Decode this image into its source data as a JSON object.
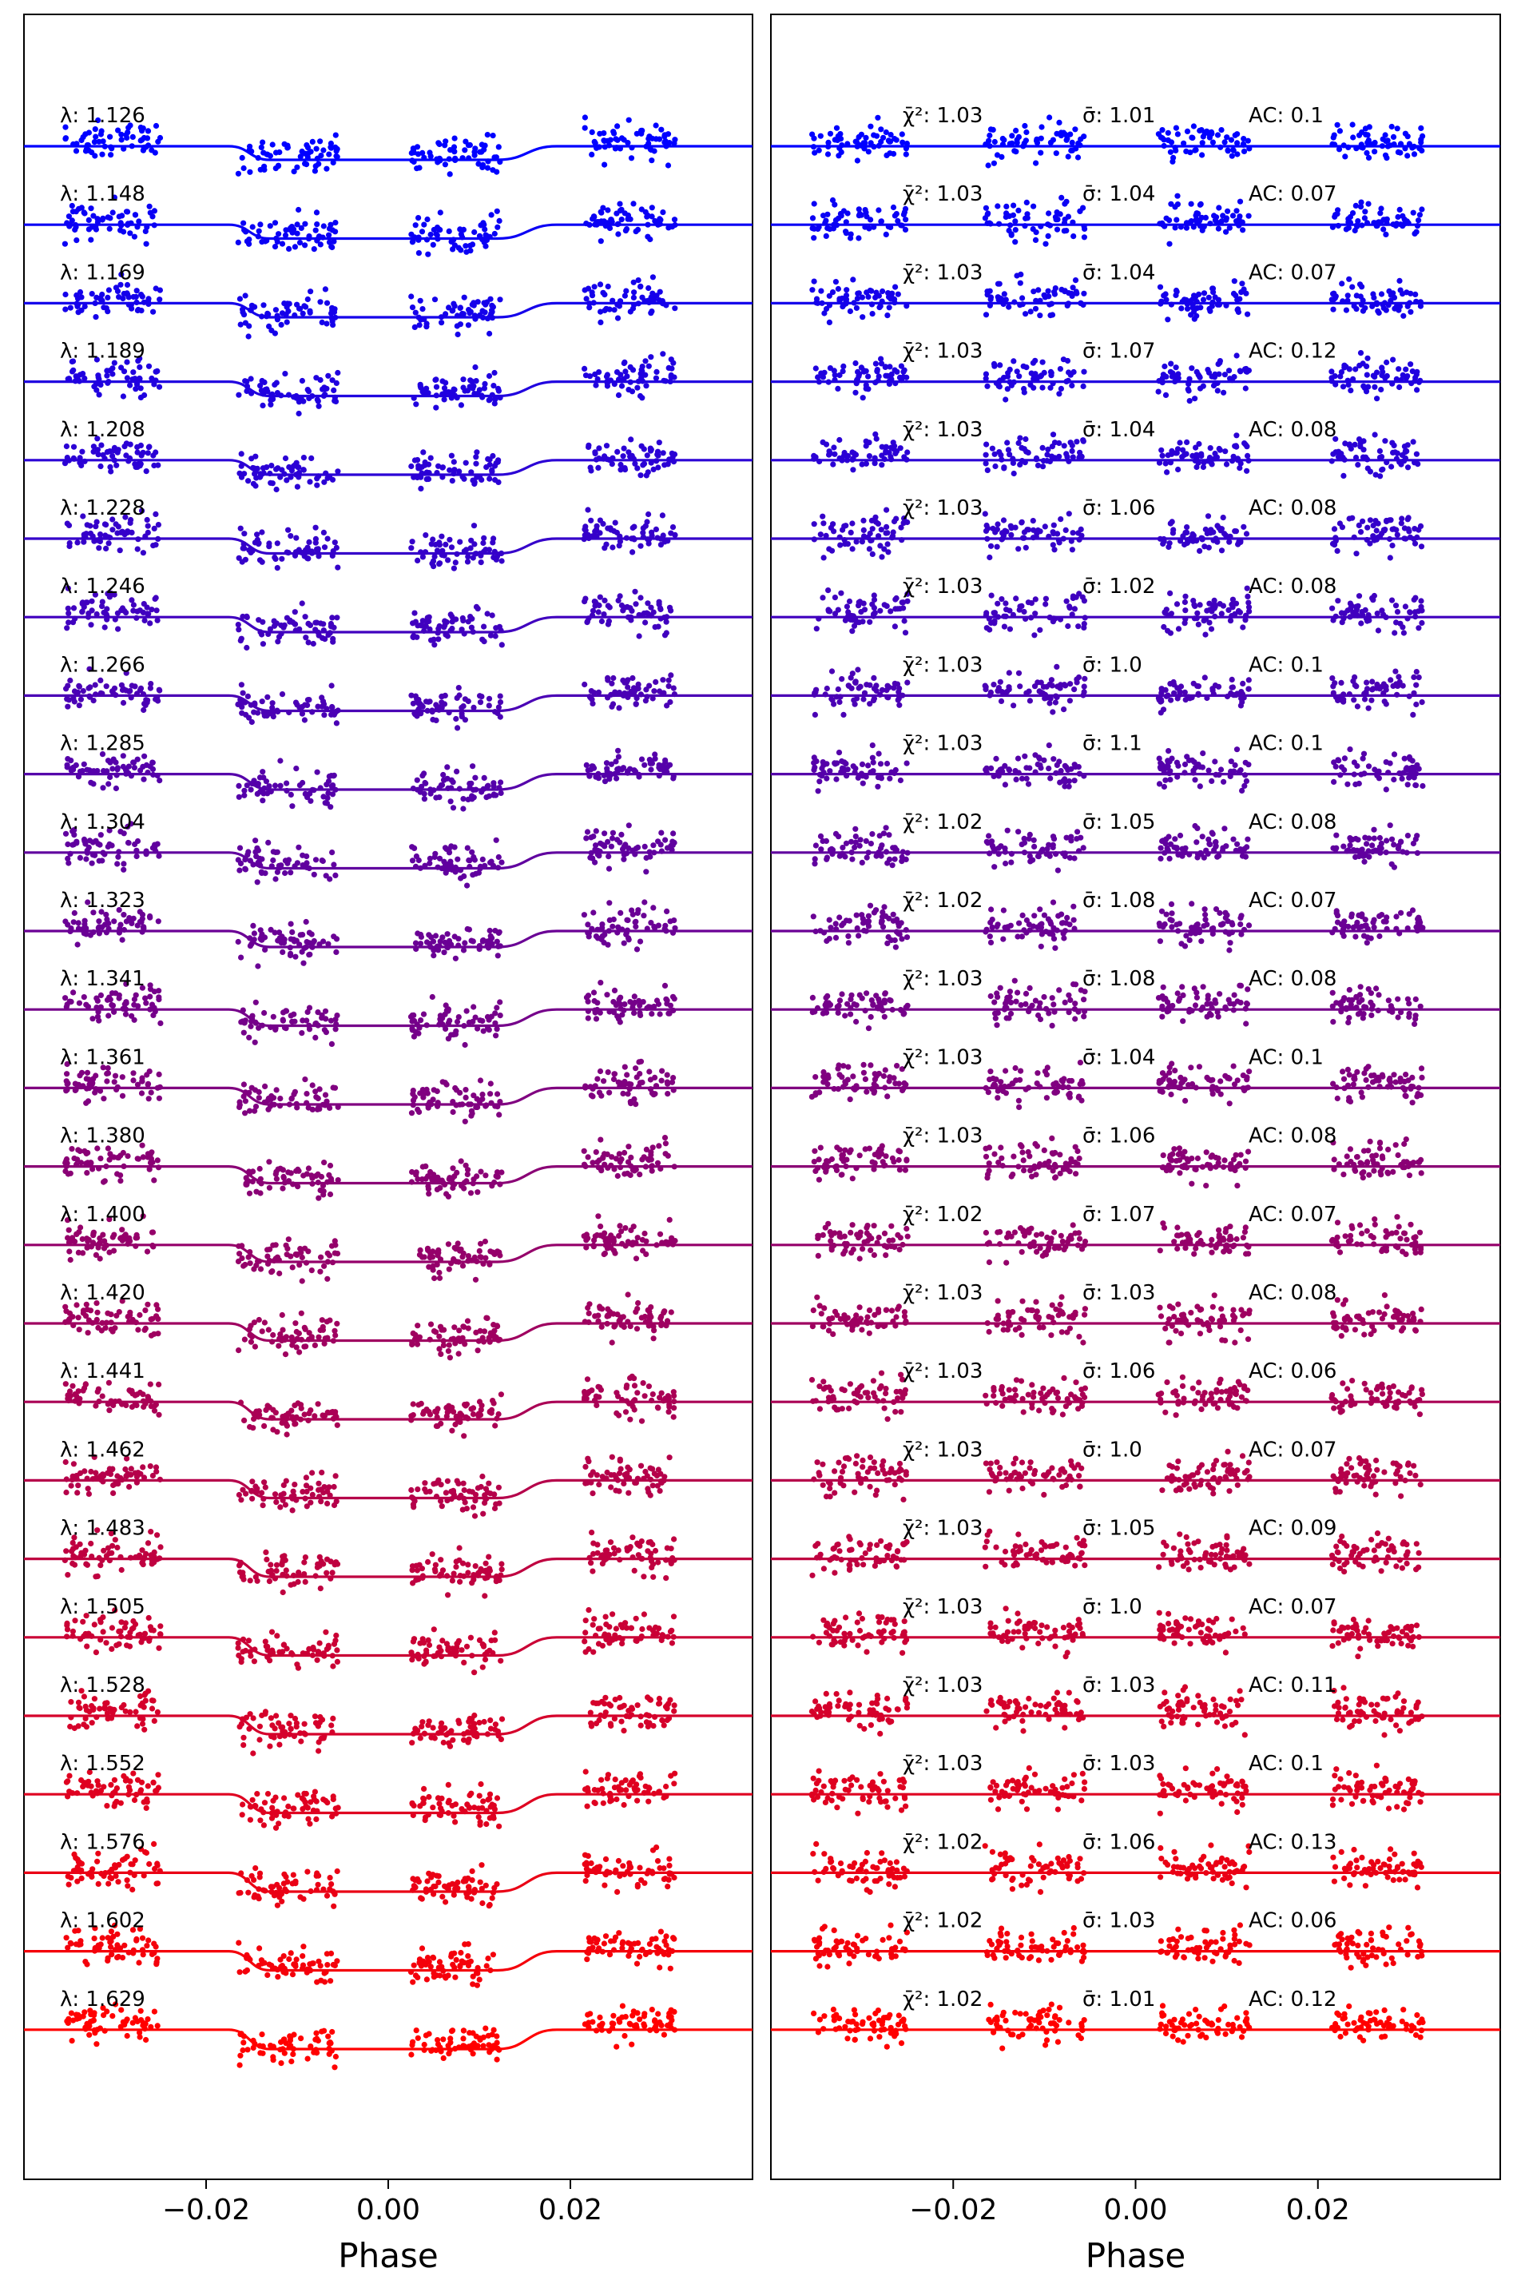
{
  "chart_data": [
    {
      "type": "scatter",
      "panel": "left",
      "xlabel": "Phase",
      "ylabel": "",
      "xlim": [
        -0.04,
        0.04
      ],
      "xticks": [
        -0.02,
        0.0,
        0.02
      ],
      "xtick_labels": [
        "−0.02",
        "0.00",
        "0.02"
      ],
      "grid": false,
      "legend": "none",
      "series_color_start": "#0000ff",
      "series_color_end": "#ff0000",
      "point_clusters_phase": [
        [
          -0.0355,
          -0.025
        ],
        [
          -0.0165,
          -0.0055
        ],
        [
          0.0025,
          0.0125
        ],
        [
          0.0215,
          0.0315
        ]
      ],
      "model_curve": {
        "baseline_before": -0.0175,
        "bottom_start": -0.013,
        "bottom_end": 0.012,
        "baseline_after": 0.0185,
        "description": "transit-like dip in model line"
      },
      "series": [
        {
          "label_prefix": "λ: ",
          "wavelength": "1.126",
          "label": "λ: 1.126"
        },
        {
          "label_prefix": "λ: ",
          "wavelength": "1.148",
          "label": "λ: 1.148"
        },
        {
          "label_prefix": "λ: ",
          "wavelength": "1.169",
          "label": "λ: 1.169"
        },
        {
          "label_prefix": "λ: ",
          "wavelength": "1.189",
          "label": "λ: 1.189"
        },
        {
          "label_prefix": "λ: ",
          "wavelength": "1.208",
          "label": "λ: 1.208"
        },
        {
          "label_prefix": "λ: ",
          "wavelength": "1.228",
          "label": "λ: 1.228"
        },
        {
          "label_prefix": "λ: ",
          "wavelength": "1.246",
          "label": "λ: 1.246"
        },
        {
          "label_prefix": "λ: ",
          "wavelength": "1.266",
          "label": "λ: 1.266"
        },
        {
          "label_prefix": "λ: ",
          "wavelength": "1.285",
          "label": "λ: 1.285"
        },
        {
          "label_prefix": "λ: ",
          "wavelength": "1.304",
          "label": "λ: 1.304"
        },
        {
          "label_prefix": "λ: ",
          "wavelength": "1.323",
          "label": "λ: 1.323"
        },
        {
          "label_prefix": "λ: ",
          "wavelength": "1.341",
          "label": "λ: 1.341"
        },
        {
          "label_prefix": "λ: ",
          "wavelength": "1.361",
          "label": "λ: 1.361"
        },
        {
          "label_prefix": "λ: ",
          "wavelength": "1.380",
          "label": "λ: 1.380"
        },
        {
          "label_prefix": "λ: ",
          "wavelength": "1.400",
          "label": "λ: 1.400"
        },
        {
          "label_prefix": "λ: ",
          "wavelength": "1.420",
          "label": "λ: 1.420"
        },
        {
          "label_prefix": "λ: ",
          "wavelength": "1.441",
          "label": "λ: 1.441"
        },
        {
          "label_prefix": "λ: ",
          "wavelength": "1.462",
          "label": "λ: 1.462"
        },
        {
          "label_prefix": "λ: ",
          "wavelength": "1.483",
          "label": "λ: 1.483"
        },
        {
          "label_prefix": "λ: ",
          "wavelength": "1.505",
          "label": "λ: 1.505"
        },
        {
          "label_prefix": "λ: ",
          "wavelength": "1.528",
          "label": "λ: 1.528"
        },
        {
          "label_prefix": "λ: ",
          "wavelength": "1.552",
          "label": "λ: 1.552"
        },
        {
          "label_prefix": "λ: ",
          "wavelength": "1.576",
          "label": "λ: 1.576"
        },
        {
          "label_prefix": "λ: ",
          "wavelength": "1.602",
          "label": "λ: 1.602"
        },
        {
          "label_prefix": "λ: ",
          "wavelength": "1.629",
          "label": "λ: 1.629"
        }
      ]
    },
    {
      "type": "scatter",
      "panel": "right",
      "xlabel": "Phase",
      "ylabel": "",
      "xlim": [
        -0.04,
        0.04
      ],
      "xticks": [
        -0.02,
        0.0,
        0.02
      ],
      "xtick_labels": [
        "−0.02",
        "0.00",
        "0.02"
      ],
      "grid": false,
      "legend": "none",
      "series_color_start": "#0000ff",
      "series_color_end": "#ff0000",
      "point_clusters_phase": [
        [
          -0.0355,
          -0.025
        ],
        [
          -0.0165,
          -0.0055
        ],
        [
          0.0025,
          0.0125
        ],
        [
          0.0215,
          0.0315
        ]
      ],
      "model_curve": {
        "description": "flat residual line"
      },
      "stat_labels": {
        "chi2": "χ̄²: ",
        "sigma": "σ̄: ",
        "ac": "AC: "
      },
      "series": [
        {
          "chi2": "1.03",
          "sigma": "1.01",
          "ac": "0.1"
        },
        {
          "chi2": "1.03",
          "sigma": "1.04",
          "ac": "0.07"
        },
        {
          "chi2": "1.03",
          "sigma": "1.04",
          "ac": "0.07"
        },
        {
          "chi2": "1.03",
          "sigma": "1.07",
          "ac": "0.12"
        },
        {
          "chi2": "1.03",
          "sigma": "1.04",
          "ac": "0.08"
        },
        {
          "chi2": "1.03",
          "sigma": "1.06",
          "ac": "0.08"
        },
        {
          "chi2": "1.03",
          "sigma": "1.02",
          "ac": "0.08"
        },
        {
          "chi2": "1.03",
          "sigma": "1.0",
          "ac": "0.1"
        },
        {
          "chi2": "1.03",
          "sigma": "1.1",
          "ac": "0.1"
        },
        {
          "chi2": "1.02",
          "sigma": "1.05",
          "ac": "0.08"
        },
        {
          "chi2": "1.02",
          "sigma": "1.08",
          "ac": "0.07"
        },
        {
          "chi2": "1.03",
          "sigma": "1.08",
          "ac": "0.08"
        },
        {
          "chi2": "1.03",
          "sigma": "1.04",
          "ac": "0.1"
        },
        {
          "chi2": "1.03",
          "sigma": "1.06",
          "ac": "0.08"
        },
        {
          "chi2": "1.02",
          "sigma": "1.07",
          "ac": "0.07"
        },
        {
          "chi2": "1.03",
          "sigma": "1.03",
          "ac": "0.08"
        },
        {
          "chi2": "1.03",
          "sigma": "1.06",
          "ac": "0.06"
        },
        {
          "chi2": "1.03",
          "sigma": "1.0",
          "ac": "0.07"
        },
        {
          "chi2": "1.03",
          "sigma": "1.05",
          "ac": "0.09"
        },
        {
          "chi2": "1.03",
          "sigma": "1.0",
          "ac": "0.07"
        },
        {
          "chi2": "1.03",
          "sigma": "1.03",
          "ac": "0.11"
        },
        {
          "chi2": "1.03",
          "sigma": "1.03",
          "ac": "0.1"
        },
        {
          "chi2": "1.02",
          "sigma": "1.06",
          "ac": "0.13"
        },
        {
          "chi2": "1.02",
          "sigma": "1.03",
          "ac": "0.06"
        },
        {
          "chi2": "1.02",
          "sigma": "1.01",
          "ac": "0.12"
        }
      ]
    }
  ]
}
